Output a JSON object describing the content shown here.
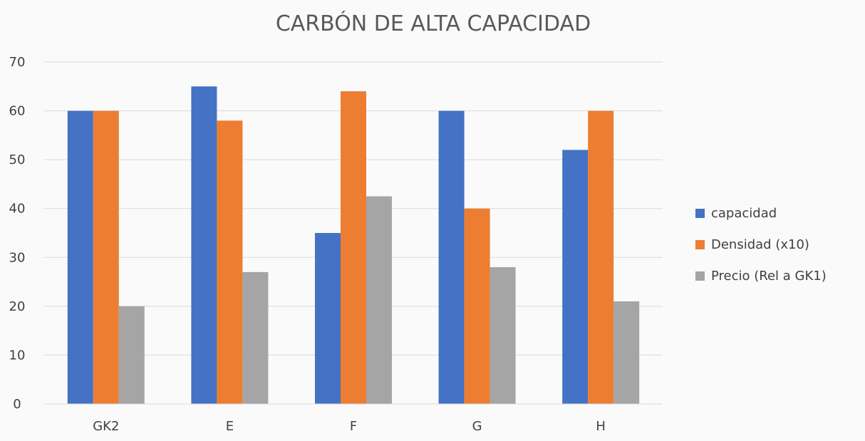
{
  "chart_data": {
    "type": "bar",
    "title": "CARBÓN DE ALTA CAPACIDAD",
    "xlabel": "",
    "ylabel": "",
    "categories": [
      "GK2",
      "E",
      "F",
      "G",
      "H"
    ],
    "ylim": [
      0,
      70
    ],
    "yticks": [
      0,
      10,
      20,
      30,
      40,
      50,
      60,
      70
    ],
    "grid": true,
    "legend_position": "right",
    "series": [
      {
        "name": "capacidad",
        "color": "#4472c4",
        "values": [
          60,
          65,
          35,
          60,
          52
        ]
      },
      {
        "name": "Densidad (x10)",
        "color": "#ed7d31",
        "values": [
          60,
          58,
          64,
          40,
          60
        ]
      },
      {
        "name": "Precio (Rel a GK1)",
        "color": "#a5a5a5",
        "values": [
          20,
          27,
          42.5,
          28,
          21
        ]
      }
    ]
  }
}
